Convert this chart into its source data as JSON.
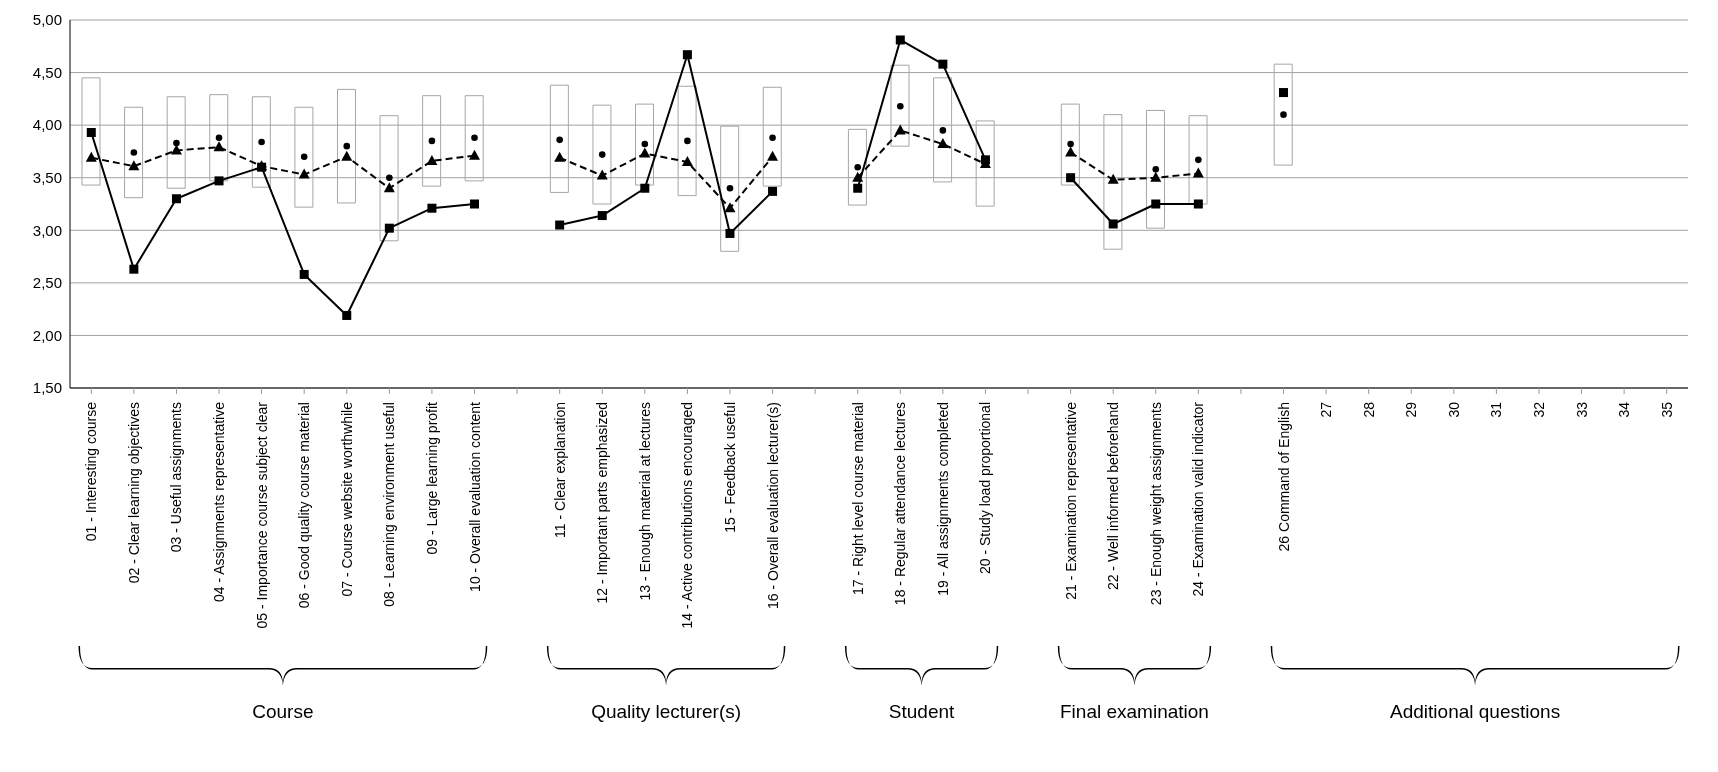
{
  "chart_data": {
    "type": "line",
    "categories": [
      "01 - Interesting course",
      "02 - Clear learning objectives",
      "03 - Useful assignments",
      "04 - Assignments representative",
      "05 - Importance course subject clear",
      "06 - Good quality course material",
      "07 - Course website worthwhile",
      "08 - Learning environment useful",
      "09 - Large learning profit",
      "10 - Overall evaluation content",
      null,
      "11 - Clear explanation",
      "12 - Important parts emphasized",
      "13 - Enough material at lectures",
      "14 - Active contributions encouraged",
      "15 - Feedback useful",
      "16 - Overall evaluation lecturer(s)",
      null,
      "17 - Right level course material",
      "18 - Regular attendance lectures",
      "19 - All assignments completed",
      "20 - Study load proportional",
      null,
      "21 - Examination representative",
      "22 - Well informed beforehand",
      "23 - Enough weight assignments",
      "24 - Examination valid indicator",
      null,
      "26 Command of English",
      "27",
      "28",
      "29",
      "30",
      "31",
      "32",
      "33",
      "34",
      "35"
    ],
    "series": [
      {
        "type": "bar",
        "color": "#a6a6a6",
        "base": [
          3.43,
          3.31,
          3.4,
          3.47,
          3.41,
          3.22,
          3.26,
          2.9,
          3.42,
          3.47,
          null,
          3.36,
          3.25,
          3.43,
          3.33,
          2.8,
          3.42,
          null,
          3.24,
          3.8,
          3.46,
          3.23,
          null,
          3.43,
          2.82,
          3.02,
          3.25,
          null,
          3.62,
          null,
          null,
          null,
          null,
          null,
          null,
          null,
          null,
          null
        ],
        "values": [
          1.02,
          0.86,
          0.87,
          0.82,
          0.86,
          0.95,
          1.08,
          1.19,
          0.86,
          0.81,
          null,
          1.02,
          0.94,
          0.77,
          1.04,
          1.19,
          0.94,
          null,
          0.72,
          0.77,
          0.99,
          0.81,
          null,
          0.77,
          1.28,
          1.12,
          0.84,
          null,
          0.96,
          null,
          null,
          null,
          null,
          null,
          null,
          null,
          null,
          null
        ]
      },
      {
        "color": "#000000",
        "marker": "triangle",
        "line_style": "dashed",
        "values": [
          3.69,
          3.61,
          3.76,
          3.79,
          3.61,
          3.53,
          3.7,
          3.4,
          3.66,
          3.71,
          null,
          3.69,
          3.52,
          3.73,
          3.65,
          3.21,
          3.7,
          null,
          3.5,
          3.95,
          3.82,
          3.63,
          null,
          3.74,
          3.48,
          3.5,
          3.54,
          null,
          null,
          null,
          null,
          null,
          null,
          null,
          null,
          null,
          null,
          null
        ]
      },
      {
        "type": "scatter",
        "color": "#000000",
        "marker": "circle",
        "values": [
          null,
          3.74,
          3.83,
          3.88,
          3.84,
          3.7,
          3.8,
          3.5,
          3.85,
          3.88,
          null,
          3.86,
          3.72,
          3.82,
          3.85,
          3.4,
          3.88,
          null,
          3.6,
          4.18,
          3.95,
          null,
          null,
          3.82,
          null,
          3.58,
          3.67,
          null,
          4.1,
          null,
          null,
          null,
          null,
          null,
          null,
          null,
          null,
          null
        ]
      },
      {
        "color": "#000000",
        "marker": "square",
        "line_style": "solid",
        "values": [
          3.93,
          2.63,
          3.3,
          3.47,
          3.6,
          2.58,
          2.19,
          3.02,
          3.21,
          3.25,
          null,
          3.05,
          3.14,
          3.4,
          4.67,
          2.97,
          3.37,
          null,
          3.4,
          4.81,
          4.58,
          3.67,
          null,
          3.5,
          3.06,
          3.25,
          3.25,
          null,
          4.31,
          null,
          null,
          null,
          null,
          null,
          null,
          null,
          null,
          null
        ]
      }
    ],
    "ylim": [
      1.5,
      5
    ],
    "yticks": [
      {
        "value": 1.5,
        "label": "1,50"
      },
      {
        "value": 2,
        "label": "2,00"
      },
      {
        "value": 2.5,
        "label": "2,50"
      },
      {
        "value": 3,
        "label": "3,00"
      },
      {
        "value": 3.5,
        "label": "3,50"
      },
      {
        "value": 4,
        "label": "4,00"
      },
      {
        "value": 4.5,
        "label": "4,50"
      },
      {
        "value": 5,
        "label": "5,00"
      }
    ],
    "grid": "y",
    "legend": false,
    "annotations": [
      "Course",
      "Quality lecturer(s)",
      "Student",
      "Final examination",
      "Additional questions"
    ]
  }
}
